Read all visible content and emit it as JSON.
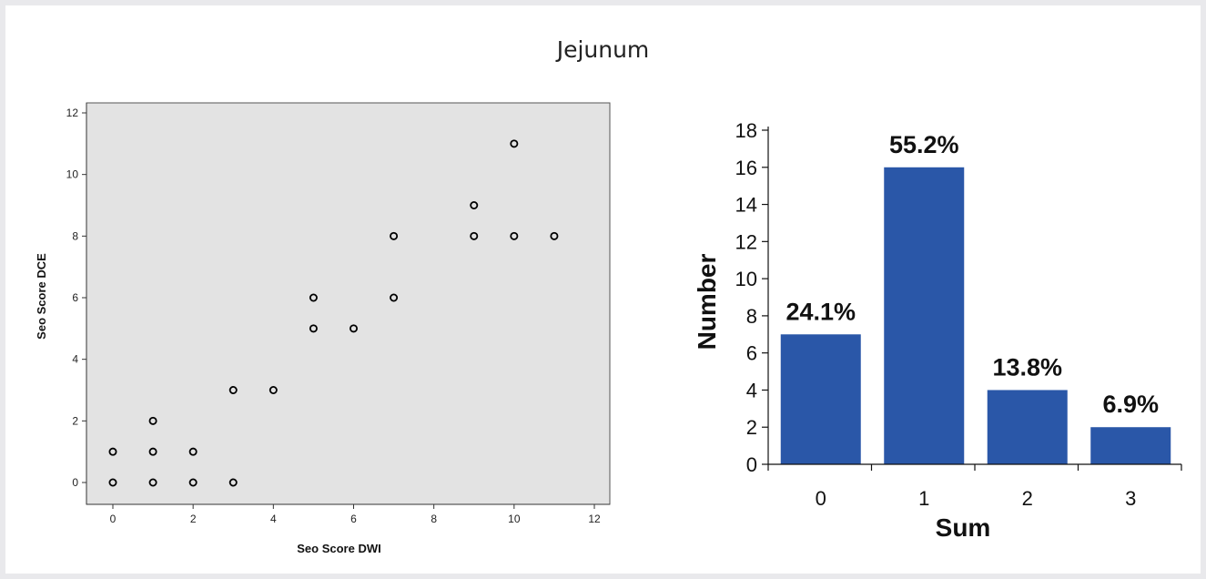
{
  "figure": {
    "title": "Jejunum"
  },
  "colors": {
    "scatter_background": "#e3e3e3",
    "bar_fill": "#2a57a8",
    "axis": "#111111"
  },
  "chart_data": [
    {
      "type": "scatter",
      "title": "",
      "xlabel": "Seo Score DWI",
      "ylabel": "Seo Score DCE",
      "xlim": [
        0,
        12
      ],
      "ylim": [
        0,
        12
      ],
      "xticks": [
        0,
        2,
        4,
        6,
        8,
        10,
        12
      ],
      "yticks": [
        0,
        2,
        4,
        6,
        8,
        10,
        12
      ],
      "grid": false,
      "points": [
        {
          "x": 0,
          "y": 0
        },
        {
          "x": 0,
          "y": 1
        },
        {
          "x": 1,
          "y": 0
        },
        {
          "x": 1,
          "y": 1
        },
        {
          "x": 1,
          "y": 2
        },
        {
          "x": 2,
          "y": 0
        },
        {
          "x": 2,
          "y": 1
        },
        {
          "x": 3,
          "y": 0
        },
        {
          "x": 3,
          "y": 3
        },
        {
          "x": 4,
          "y": 3
        },
        {
          "x": 5,
          "y": 5
        },
        {
          "x": 5,
          "y": 6
        },
        {
          "x": 6,
          "y": 5
        },
        {
          "x": 7,
          "y": 6
        },
        {
          "x": 7,
          "y": 8
        },
        {
          "x": 9,
          "y": 8
        },
        {
          "x": 9,
          "y": 9
        },
        {
          "x": 10,
          "y": 8
        },
        {
          "x": 10,
          "y": 11
        },
        {
          "x": 11,
          "y": 8
        }
      ]
    },
    {
      "type": "bar",
      "title": "",
      "xlabel": "Sum",
      "ylabel": "Number",
      "categories": [
        "0",
        "1",
        "2",
        "3"
      ],
      "values": [
        7,
        16,
        4,
        2
      ],
      "data_labels": [
        "24.1%",
        "55.2%",
        "13.8%",
        "6.9%"
      ],
      "ylim": [
        0,
        18
      ],
      "yticks": [
        0,
        2,
        4,
        6,
        8,
        10,
        12,
        14,
        16,
        18
      ],
      "grid": false
    }
  ]
}
